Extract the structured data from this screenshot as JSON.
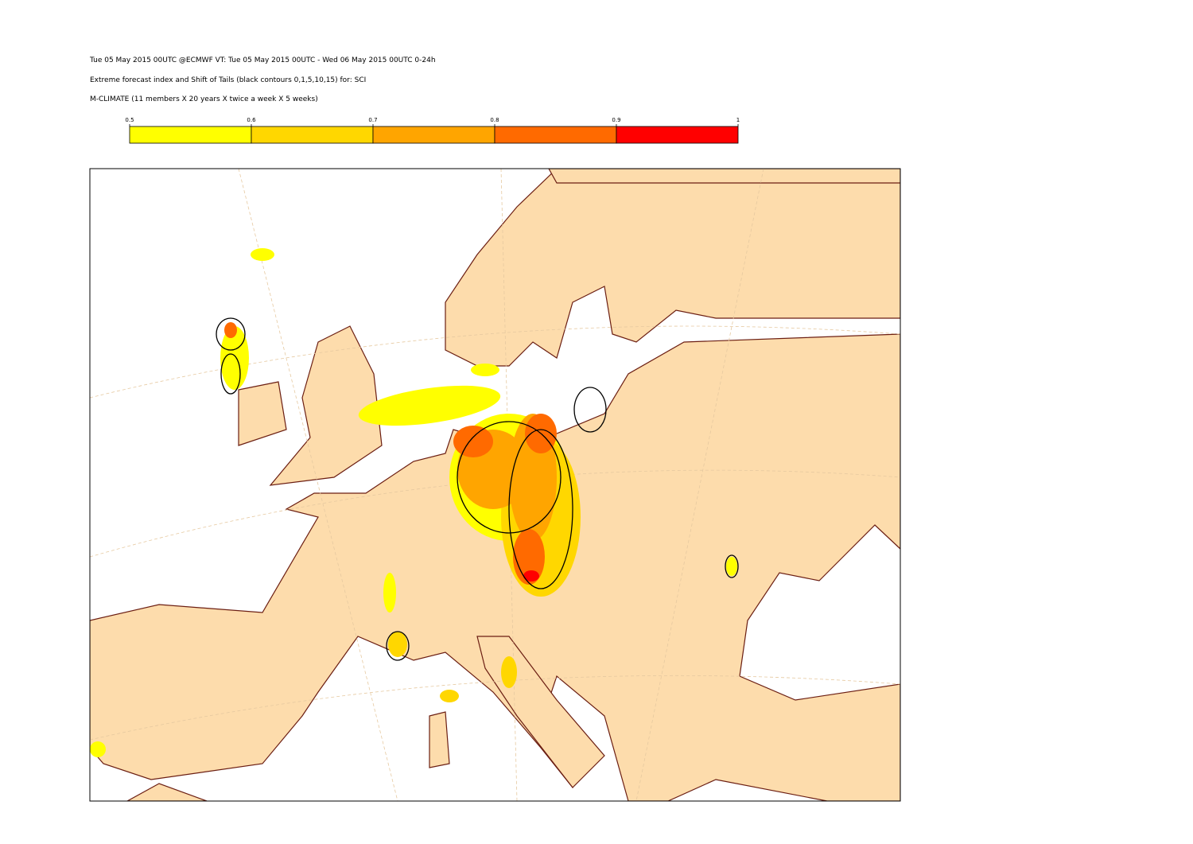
{
  "header": {
    "lines": [
      "Tue 05 May 2015 00UTC @ECMWF VT: Tue 05 May 2015 00UTC - Wed 06 May 2015 00UTC  0-24h",
      "Extreme forecast index and Shift of Tails (black contours 0,1,5,10,15) for: SCI",
      "M-CLIMATE (11 members X 20 years X twice a week X 5 weeks)"
    ]
  },
  "colorbar": {
    "ticks": [
      0.5,
      0.6,
      0.7,
      0.8,
      0.9,
      1
    ],
    "colors": [
      "#ffff00",
      "#ffd700",
      "#ffa500",
      "#ff6a00",
      "#ff0000"
    ]
  }
}
